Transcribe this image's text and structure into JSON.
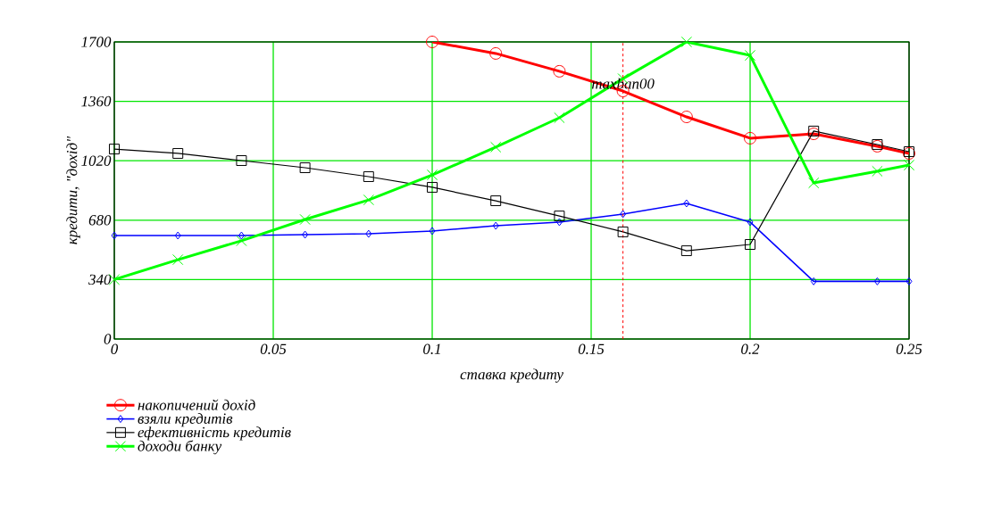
{
  "chart_data": {
    "type": "line",
    "xlabel": "ставка кредиту",
    "ylabel": "кредити, \"дохід\"",
    "x": [
      0,
      0.02,
      0.04,
      0.06,
      0.08,
      0.1,
      0.12,
      0.14,
      0.16,
      0.18,
      0.2,
      0.22,
      0.24,
      0.25
    ],
    "series": [
      {
        "name": "накопичений дохід",
        "color": "#ff0000",
        "marker": "circle",
        "values": [
          null,
          null,
          null,
          null,
          null,
          1700,
          1634,
          1532,
          1419,
          1271,
          1149,
          1174,
          1103,
          1062
        ]
      },
      {
        "name": "взяли кредитів",
        "color": "#0000ff",
        "marker": "diamond",
        "values": [
          592,
          592,
          592,
          597,
          602,
          618,
          648,
          669,
          715,
          776,
          669,
          330,
          330,
          330
        ]
      },
      {
        "name": "ефективність кредитів",
        "color": "#000000",
        "marker": "square",
        "values": [
          1087,
          1062,
          1021,
          980,
          929,
          868,
          791,
          704,
          613,
          505,
          541,
          1190,
          1113,
          1072
        ]
      },
      {
        "name": "доходи банку",
        "color": "#00ff00",
        "marker": "cross",
        "values": [
          340,
          454,
          562,
          684,
          796,
          939,
          1098,
          1266,
          1490,
          1700,
          1623,
          893,
          960,
          995
        ]
      }
    ],
    "xlim": [
      0,
      0.25
    ],
    "xticks": [
      0,
      0.05,
      0.1,
      0.15,
      0.2,
      0.25
    ],
    "ylim": [
      0,
      1700
    ],
    "yticks": [
      0,
      340,
      680,
      1020,
      1360,
      1700
    ],
    "grid": true,
    "legend": "bottom left",
    "ref_lines": [
      {
        "axis": "x",
        "value": 0.16,
        "label": "maxban00",
        "color": "#ff0000",
        "line_style": "dashed"
      }
    ]
  }
}
